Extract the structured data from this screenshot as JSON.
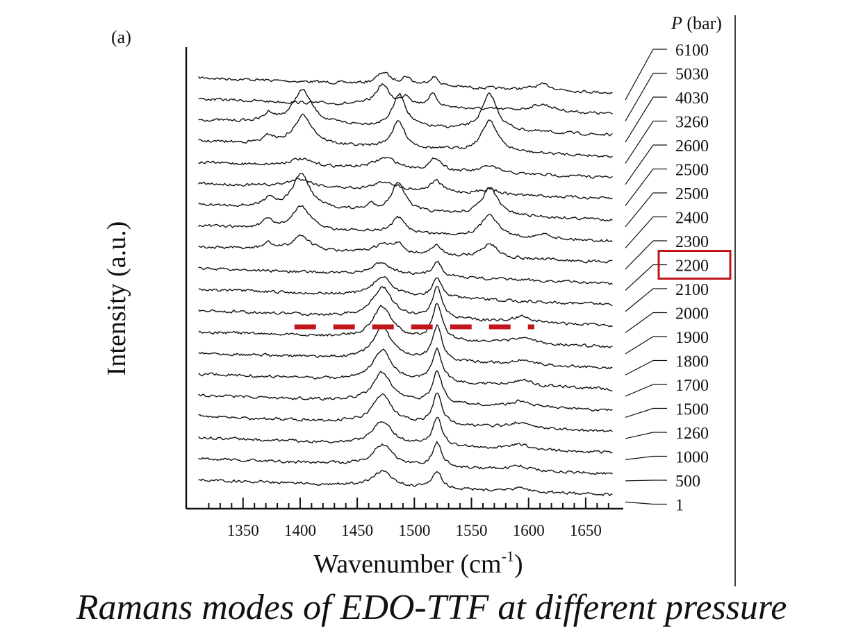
{
  "caption": "Ramans modes of EDO-TTF at different pressure",
  "highlight_color": "#c0151a",
  "chart_data": {
    "type": "line",
    "panel_label": "(a)",
    "title": "",
    "xlabel": "Wavenumber (cm",
    "xlabel_sup": "-1",
    "xlabel_close": ")",
    "ylabel": "Intensity (a.u.)",
    "legend_title_symbol": "P",
    "legend_title_unit": " (bar)",
    "xlim": [
      1310,
      1675
    ],
    "x_ticks": [
      1350,
      1400,
      1450,
      1500,
      1550,
      1600,
      1650
    ],
    "x_tick_labels": [
      "1350",
      "1400",
      "1450",
      "1500",
      "1550",
      "1600",
      "1650"
    ],
    "grid": false,
    "highlighted_pressure": "2200",
    "dashed_marker": {
      "x_range": [
        1395,
        1605
      ]
    },
    "series": [
      {
        "name": "6100",
        "peaks": [
          [
            1473,
            17,
            7
          ],
          [
            1493,
            11,
            5
          ],
          [
            1517,
            13,
            5
          ],
          [
            1613,
            8,
            10
          ]
        ]
      },
      {
        "name": "5030",
        "peaks": [
          [
            1472,
            30,
            7
          ],
          [
            1493,
            14,
            5
          ],
          [
            1516,
            18,
            5
          ],
          [
            1612,
            10,
            12
          ]
        ]
      },
      {
        "name": "4030",
        "peaks": [
          [
            1373,
            12,
            5
          ],
          [
            1402,
            48,
            10
          ],
          [
            1487,
            47,
            7
          ],
          [
            1566,
            52,
            8
          ]
        ]
      },
      {
        "name": "3260",
        "peaks": [
          [
            1373,
            10,
            5
          ],
          [
            1403,
            42,
            10
          ],
          [
            1486,
            38,
            7
          ],
          [
            1566,
            46,
            8
          ]
        ]
      },
      {
        "name": "2600",
        "peaks": [
          [
            1400,
            10,
            12
          ],
          [
            1475,
            16,
            12
          ],
          [
            1519,
            18,
            6
          ],
          [
            1566,
            10,
            8
          ]
        ]
      },
      {
        "name": "2500",
        "peaks": [
          [
            1400,
            12,
            12
          ],
          [
            1475,
            12,
            12
          ],
          [
            1519,
            16,
            6
          ],
          [
            1566,
            8,
            8
          ]
        ]
      },
      {
        "name": "2500",
        "peaks": [
          [
            1373,
            14,
            5
          ],
          [
            1401,
            50,
            9
          ],
          [
            1462,
            8,
            4
          ],
          [
            1486,
            43,
            7
          ],
          [
            1566,
            40,
            8
          ]
        ]
      },
      {
        "name": "2400",
        "peaks": [
          [
            1372,
            12,
            5
          ],
          [
            1401,
            34,
            9
          ],
          [
            1486,
            22,
            7
          ],
          [
            1566,
            33,
            8
          ],
          [
            1615,
            6,
            6
          ]
        ]
      },
      {
        "name": "2300",
        "peaks": [
          [
            1372,
            9,
            5
          ],
          [
            1401,
            22,
            9
          ],
          [
            1472,
            12,
            10
          ],
          [
            1486,
            12,
            6
          ],
          [
            1519,
            14,
            5
          ],
          [
            1566,
            20,
            8
          ]
        ]
      },
      {
        "name": "2200",
        "peaks": [
          [
            1472,
            18,
            10
          ],
          [
            1520,
            22,
            5
          ]
        ]
      },
      {
        "name": "2100",
        "peaks": [
          [
            1472,
            28,
            10
          ],
          [
            1520,
            28,
            5
          ]
        ]
      },
      {
        "name": "2000",
        "peaks": [
          [
            1472,
            44,
            10
          ],
          [
            1520,
            46,
            5
          ],
          [
            1595,
            8,
            10
          ]
        ]
      },
      {
        "name": "1900",
        "peaks": [
          [
            1472,
            46,
            10
          ],
          [
            1520,
            52,
            5
          ],
          [
            1595,
            8,
            10
          ]
        ]
      },
      {
        "name": "1800",
        "peaks": [
          [
            1472,
            46,
            10
          ],
          [
            1520,
            50,
            5
          ],
          [
            1595,
            7,
            10
          ]
        ]
      },
      {
        "name": "1700",
        "peaks": [
          [
            1472,
            44,
            10
          ],
          [
            1520,
            48,
            5
          ],
          [
            1595,
            8,
            10
          ]
        ]
      },
      {
        "name": "1500",
        "peaks": [
          [
            1472,
            42,
            10
          ],
          [
            1520,
            46,
            5
          ],
          [
            1593,
            8,
            10
          ]
        ]
      },
      {
        "name": "1260",
        "peaks": [
          [
            1472,
            40,
            10
          ],
          [
            1520,
            44,
            5
          ],
          [
            1592,
            8,
            10
          ]
        ]
      },
      {
        "name": "1000",
        "peaks": [
          [
            1472,
            34,
            10
          ],
          [
            1520,
            40,
            5
          ],
          [
            1592,
            7,
            10
          ]
        ]
      },
      {
        "name": "500",
        "peaks": [
          [
            1472,
            30,
            10
          ],
          [
            1520,
            34,
            5
          ],
          [
            1592,
            6,
            10
          ]
        ]
      },
      {
        "name": "1",
        "peaks": [
          [
            1472,
            22,
            10
          ],
          [
            1520,
            24,
            5
          ],
          [
            1592,
            5,
            10
          ]
        ]
      }
    ]
  }
}
